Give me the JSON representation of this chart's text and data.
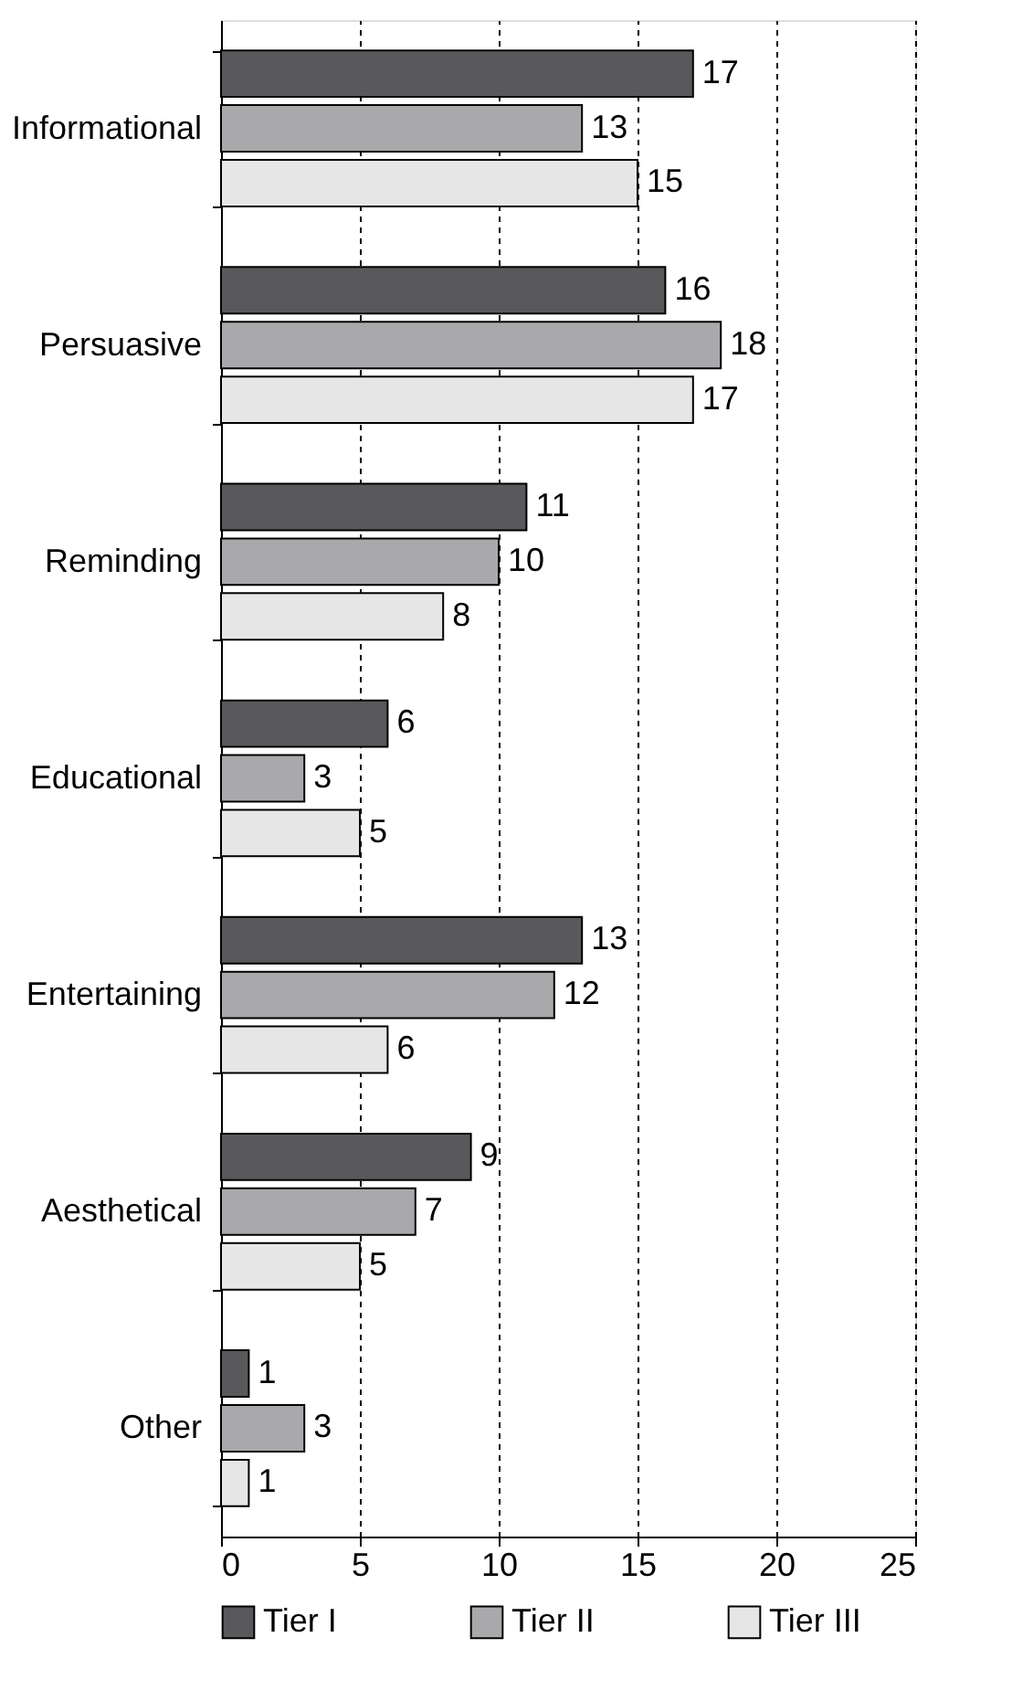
{
  "chart_data": {
    "type": "bar",
    "orientation": "horizontal",
    "categories": [
      "Informational",
      "Persuasive",
      "Reminding",
      "Educational",
      "Entertaining",
      "Aesthetical",
      "Other"
    ],
    "series": [
      {
        "name": "Tier I",
        "color": "#59595c",
        "values": [
          17,
          16,
          11,
          6,
          13,
          9,
          1
        ]
      },
      {
        "name": "Tier II",
        "color": "#a9a9ab",
        "values": [
          13,
          18,
          10,
          3,
          12,
          7,
          3
        ]
      },
      {
        "name": "Tier III",
        "color": "#e6e6e6",
        "values": [
          15,
          17,
          8,
          5,
          6,
          5,
          1
        ]
      }
    ],
    "xlim": [
      0,
      25
    ],
    "xticks": [
      0,
      5,
      10,
      15,
      20,
      25
    ],
    "grid": "x",
    "legend": "bottom",
    "data_labels": true
  }
}
